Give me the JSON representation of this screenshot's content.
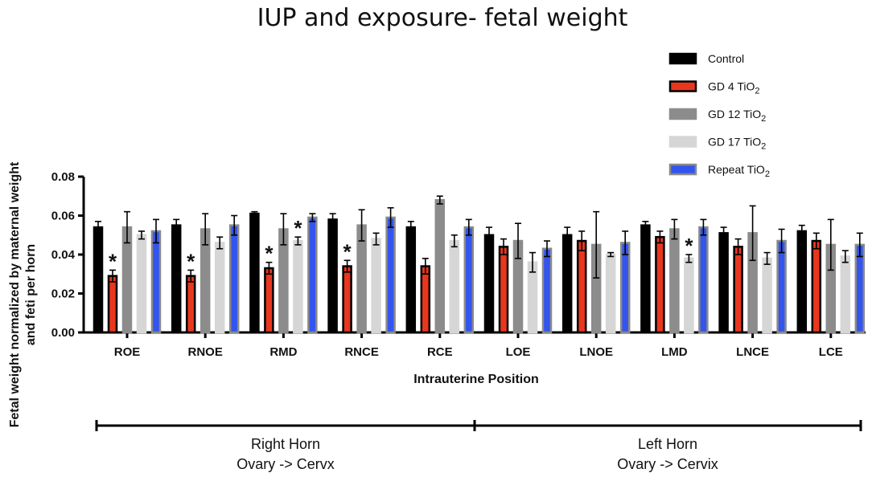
{
  "chart_data": {
    "type": "bar",
    "title": "IUP and exposure- fetal weight",
    "xlabel": "Intrauterine Position",
    "ylabel_line1": "Fetal weight normalized by maternal weight",
    "ylabel_line2": "and feti per horn",
    "ylim": [
      0,
      0.08
    ],
    "yticks": [
      "0.00",
      "0.02",
      "0.04",
      "0.06",
      "0.08"
    ],
    "categories": [
      "ROE",
      "RNOE",
      "RMD",
      "RNCE",
      "RCE",
      "LOE",
      "LNOE",
      "LMD",
      "LNCE",
      "LCE"
    ],
    "series": [
      {
        "name": "Control",
        "sub": "",
        "color": "#000000",
        "fill": "#000000",
        "values": [
          0.054,
          0.055,
          0.061,
          0.058,
          0.054,
          0.05,
          0.05,
          0.055,
          0.051,
          0.052
        ],
        "errors": [
          0.003,
          0.003,
          0.001,
          0.003,
          0.003,
          0.004,
          0.004,
          0.002,
          0.003,
          0.003
        ]
      },
      {
        "name": "GD 4 TiO",
        "sub": "2",
        "color": "#000000",
        "fill": "#e8371e",
        "values": [
          0.029,
          0.029,
          0.033,
          0.034,
          0.034,
          0.044,
          0.047,
          0.049,
          0.044,
          0.047
        ],
        "errors": [
          0.003,
          0.003,
          0.003,
          0.003,
          0.004,
          0.004,
          0.005,
          0.003,
          0.004,
          0.004
        ]
      },
      {
        "name": "GD 12 TiO",
        "sub": "2",
        "color": "#8c8c8c",
        "fill": "#8c8c8c",
        "values": [
          0.054,
          0.053,
          0.053,
          0.055,
          0.068,
          0.047,
          0.045,
          0.053,
          0.051,
          0.045
        ],
        "errors": [
          0.008,
          0.008,
          0.008,
          0.008,
          0.002,
          0.009,
          0.017,
          0.005,
          0.014,
          0.013
        ]
      },
      {
        "name": "GD 17 TiO",
        "sub": "2",
        "color": "#d6d6d6",
        "fill": "#d6d6d6",
        "values": [
          0.05,
          0.046,
          0.047,
          0.048,
          0.047,
          0.036,
          0.04,
          0.038,
          0.038,
          0.039
        ],
        "errors": [
          0.002,
          0.003,
          0.002,
          0.003,
          0.003,
          0.005,
          0.001,
          0.002,
          0.003,
          0.003
        ]
      },
      {
        "name": "Repeat TiO",
        "sub": "2",
        "color": "#8a8a8a",
        "fill": "#3355ee",
        "values": [
          0.052,
          0.055,
          0.059,
          0.059,
          0.054,
          0.043,
          0.046,
          0.054,
          0.047,
          0.045
        ],
        "errors": [
          0.006,
          0.005,
          0.002,
          0.005,
          0.004,
          0.004,
          0.006,
          0.004,
          0.006,
          0.006
        ]
      }
    ],
    "significance": [
      {
        "category": 0,
        "series": 1,
        "label": "*"
      },
      {
        "category": 1,
        "series": 1,
        "label": "*"
      },
      {
        "category": 2,
        "series": 1,
        "label": "*"
      },
      {
        "category": 2,
        "series": 3,
        "label": "*"
      },
      {
        "category": 3,
        "series": 1,
        "label": "*"
      },
      {
        "category": 7,
        "series": 3,
        "label": "*"
      }
    ],
    "groups": [
      {
        "line1": "Right Horn",
        "line2": "Ovary -> Cervx",
        "from": 0,
        "to": 4
      },
      {
        "line1": "Left Horn",
        "line2": "Ovary -> Cervix",
        "from": 5,
        "to": 9
      }
    ],
    "legend_position": "top-right"
  }
}
